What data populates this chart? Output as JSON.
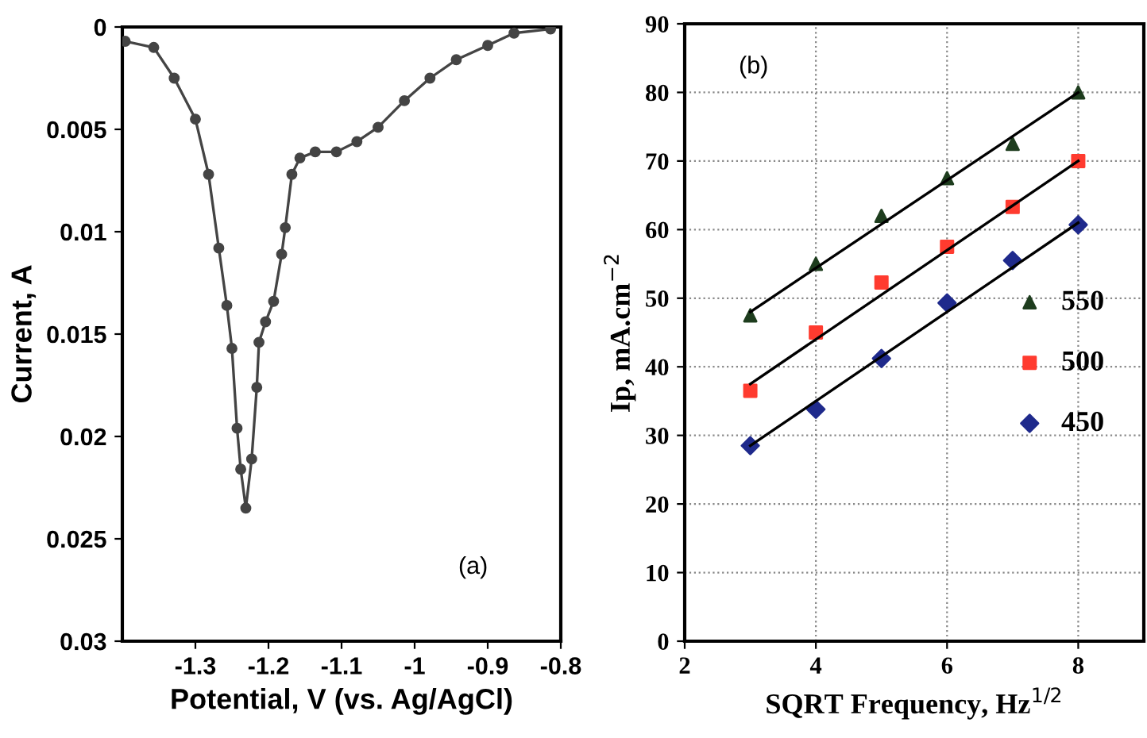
{
  "chart_data": [
    {
      "type": "line",
      "xlabel": "Potential, V (vs. Ag/AgCl)",
      "ylabel": "Current, A",
      "annotations": [
        "(a)"
      ],
      "xlim": [
        -1.4,
        -0.8
      ],
      "ylim": [
        0.03,
        0
      ],
      "xticks": [
        -1.3,
        -1.2,
        -1.1,
        {
          "value": -1,
          "label": "-1"
        },
        -0.9,
        -0.8
      ],
      "yticks": [
        {
          "value": 0,
          "label": "0"
        },
        0.005,
        0.01,
        0.015,
        0.02,
        0.025,
        0.03
      ],
      "grid": false,
      "marker": "circle",
      "legend": false,
      "series": [
        {
          "color": "#444444",
          "x": [
            -1.396,
            -1.357,
            -1.329,
            -1.3,
            -1.282,
            -1.268,
            -1.257,
            -1.25,
            -1.243,
            -1.238,
            -1.231,
            -1.223,
            -1.216,
            -1.213,
            -1.204,
            -1.193,
            -1.182,
            -1.177,
            -1.168,
            -1.157,
            -1.136,
            -1.107,
            -1.079,
            -1.05,
            -1.014,
            -0.979,
            -0.943,
            -0.9,
            -0.864,
            -0.814
          ],
          "values": [
            0.0007,
            0.001,
            0.0025,
            0.0045,
            0.0072,
            0.0108,
            0.0136,
            0.0157,
            0.0196,
            0.0216,
            0.0235,
            0.0211,
            0.0176,
            0.0154,
            0.0144,
            0.0134,
            0.0111,
            0.0098,
            0.0072,
            0.0064,
            0.0061,
            0.0061,
            0.0056,
            0.0049,
            0.0036,
            0.0025,
            0.0016,
            0.0009,
            0.0003,
            0.0001
          ]
        }
      ]
    },
    {
      "type": "scatter",
      "xlabel": "SQRT Frequency, Hz$^{1/2}$",
      "ylabel": "Ip, mA.cm$^{−2}$",
      "annotations": [
        "(b)"
      ],
      "xlim": [
        2,
        9
      ],
      "ylim": [
        0,
        90
      ],
      "xticks": [
        2,
        4,
        6,
        8
      ],
      "yticks": [
        0,
        10,
        20,
        30,
        40,
        50,
        60,
        70,
        80,
        90
      ],
      "grid": true,
      "legend": "right",
      "x": [
        3,
        4,
        5,
        6,
        7,
        8
      ],
      "series": [
        {
          "name": "550",
          "color": "#1e3d1e",
          "marker": "triangle",
          "values": [
            47.5,
            55,
            62,
            67.5,
            72.5,
            80
          ]
        },
        {
          "name": "500",
          "color": "#ff3b2f",
          "marker": "square",
          "values": [
            36.5,
            45,
            52.3,
            57.5,
            63.3,
            70
          ]
        },
        {
          "name": "450",
          "color": "#1f2a8c",
          "marker": "diamond",
          "values": [
            28.5,
            33.8,
            41.2,
            49.3,
            55.5,
            60.7
          ]
        },
        {
          "type": "line",
          "color": "#000000",
          "marker": "none",
          "x": [
            3,
            8
          ],
          "values": [
            48,
            80
          ]
        },
        {
          "type": "line",
          "color": "#000000",
          "marker": "none",
          "x": [
            3,
            8
          ],
          "values": [
            37.5,
            70
          ]
        },
        {
          "type": "line",
          "color": "#000000",
          "marker": "none",
          "x": [
            3,
            8
          ],
          "values": [
            28.5,
            61
          ]
        }
      ]
    }
  ]
}
